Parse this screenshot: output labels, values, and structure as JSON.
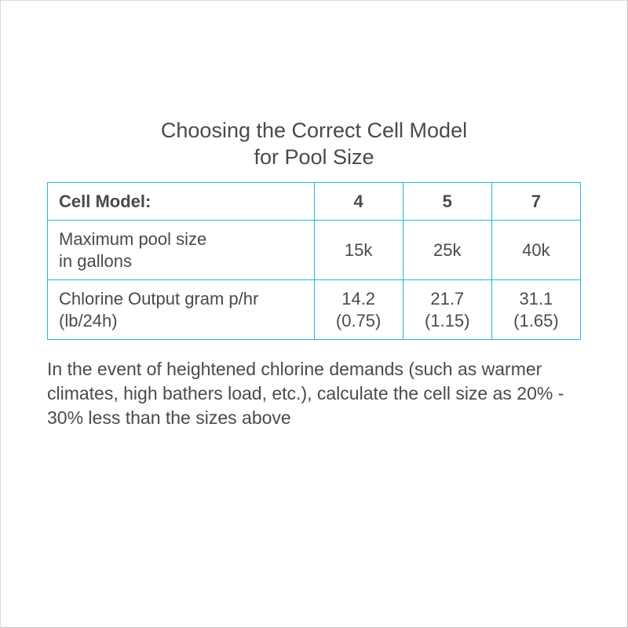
{
  "title_line1": "Choosing the Correct Cell Model",
  "title_line2": "for Pool Size",
  "table": {
    "border_color": "#20b8e0",
    "text_color": "#4a4a4a",
    "header_label": "Cell Model:",
    "columns": [
      "4",
      "5",
      "7"
    ],
    "rows": [
      {
        "label_line1": "Maximum pool size",
        "label_line2": "in gallons",
        "cells": [
          {
            "line1": "15k"
          },
          {
            "line1": "25k"
          },
          {
            "line1": "40k"
          }
        ]
      },
      {
        "label_line1": "Chlorine Output gram p/hr",
        "label_line2": "(lb/24h)",
        "cells": [
          {
            "line1": "14.2",
            "line2": "(0.75)"
          },
          {
            "line1": "21.7",
            "line2": "(1.15)"
          },
          {
            "line1": "31.1",
            "line2": "(1.65)"
          }
        ]
      }
    ]
  },
  "footnote": "In the event of heightened chlorine demands (such as warmer climates, high bathers load, etc.), calculate the cell size as 20% - 30% less than the sizes above",
  "styling": {
    "background_color": "#ffffff",
    "title_fontsize": 27,
    "cell_fontsize": 22,
    "footnote_fontsize": 23,
    "border_width": 1.5
  }
}
